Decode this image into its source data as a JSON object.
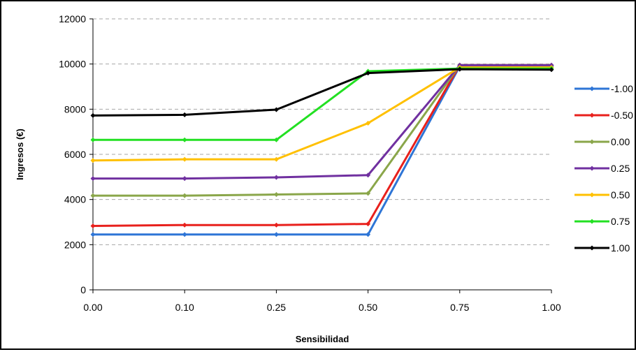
{
  "chart_data": {
    "type": "line",
    "title": "",
    "xlabel": "Sensibilidad",
    "ylabel": "Ingresos (€)",
    "categories": [
      "0.00",
      "0.10",
      "0.25",
      "0.50",
      "0.75",
      "1.00"
    ],
    "ylim": [
      0,
      12000
    ],
    "yticks": [
      "0",
      "2000",
      "4000",
      "6000",
      "8000",
      "10000",
      "12000"
    ],
    "grid": "horizontal-dashed",
    "legend_position": "right",
    "series": [
      {
        "name": "-1.00",
        "color": "#2e75d6",
        "values": [
          2450,
          2450,
          2450,
          2450,
          9900,
          9900
        ]
      },
      {
        "name": "-0.50",
        "color": "#e8201c",
        "values": [
          2830,
          2870,
          2870,
          2920,
          9950,
          9950
        ]
      },
      {
        "name": "0.00",
        "color": "#8aa64a",
        "values": [
          4170,
          4170,
          4220,
          4270,
          9950,
          9950
        ]
      },
      {
        "name": "0.25",
        "color": "#7030a0",
        "values": [
          4930,
          4930,
          4980,
          5080,
          9950,
          9950
        ]
      },
      {
        "name": "0.50",
        "color": "#ffc000",
        "values": [
          5730,
          5780,
          5780,
          7380,
          9850,
          9850
        ]
      },
      {
        "name": "0.75",
        "color": "#22e022",
        "values": [
          6640,
          6640,
          6640,
          9680,
          9800,
          9800
        ]
      },
      {
        "name": "1.00",
        "color": "#000000",
        "values": [
          7720,
          7750,
          7980,
          9600,
          9770,
          9750
        ]
      }
    ]
  }
}
